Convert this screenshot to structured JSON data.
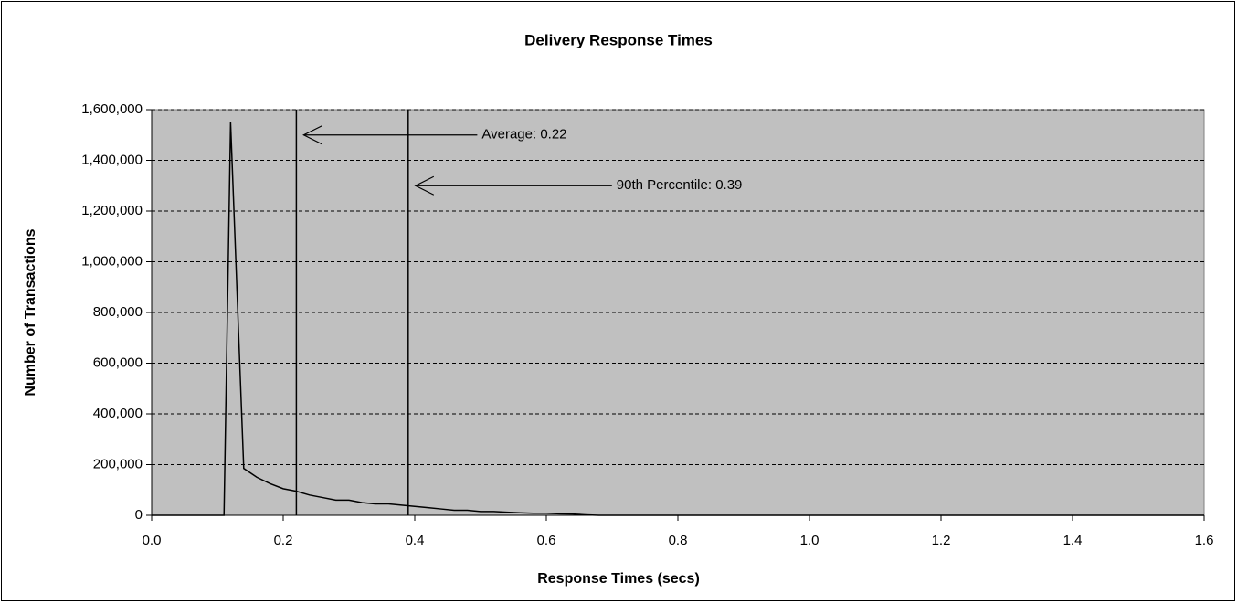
{
  "chart_data": {
    "type": "line",
    "title": "Delivery Response Times",
    "x_label": "Response Times (secs)",
    "y_label": "Number of Transactions",
    "x": [
      0,
      0.11,
      0.12,
      0.14,
      0.16,
      0.18,
      0.2,
      0.22,
      0.24,
      0.26,
      0.28,
      0.3,
      0.32,
      0.34,
      0.36,
      0.38,
      0.4,
      0.42,
      0.44,
      0.46,
      0.48,
      0.5,
      0.52,
      0.54,
      0.56,
      0.58,
      0.6,
      0.62,
      0.64,
      0.66,
      0.68,
      1.6
    ],
    "values": [
      0,
      0,
      1550000,
      185000,
      150000,
      125000,
      105000,
      95000,
      80000,
      70000,
      60000,
      60000,
      50000,
      45000,
      45000,
      40000,
      35000,
      30000,
      25000,
      20000,
      20000,
      15000,
      15000,
      12000,
      10000,
      8000,
      8000,
      6000,
      5000,
      2000,
      0,
      0
    ],
    "color": "#000000",
    "xlim": [
      0,
      1.6
    ],
    "xticks": [
      {
        "value": 0,
        "label": "0.0"
      },
      {
        "value": 0.2,
        "label": "0.2"
      },
      {
        "value": 0.4,
        "label": "0.4"
      },
      {
        "value": 0.6,
        "label": "0.6"
      },
      {
        "value": 0.8,
        "label": "0.8"
      },
      {
        "value": 1,
        "label": "1.0"
      },
      {
        "value": 1.2,
        "label": "1.2"
      },
      {
        "value": 1.4,
        "label": "1.4"
      },
      {
        "value": 1.6,
        "label": "1.6"
      }
    ],
    "ylim": [
      0,
      1600000
    ],
    "yticks": [
      0,
      {
        "value": 200000,
        "label": "200,000"
      },
      {
        "value": 400000,
        "label": "400,000"
      },
      {
        "value": 600000,
        "label": "600,000"
      },
      {
        "value": 800000,
        "label": "800,000"
      },
      {
        "value": 1000000,
        "label": "1,000,000"
      },
      {
        "value": 1200000,
        "label": "1,200,000"
      },
      {
        "value": 1400000,
        "label": "1,400,000"
      },
      {
        "value": 1600000,
        "label": "1,600,000"
      }
    ],
    "grid": true,
    "annotations": [
      {
        "text": "Average: 0.22",
        "x": 0.22,
        "y": 1500000
      },
      {
        "text": "90th Percentile: 0.39",
        "x": 0.39,
        "y": 1300000
      }
    ]
  }
}
